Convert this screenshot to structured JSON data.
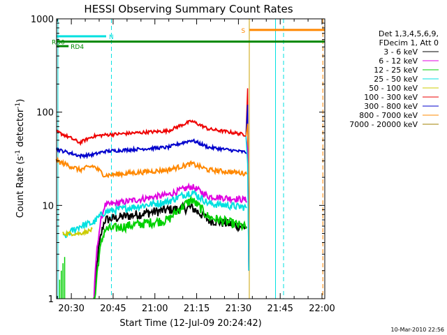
{
  "chart_data": {
    "type": "line",
    "title": "HESSI Observing Summary Count Rates",
    "xlabel": "Start Time (12-Jul-09 20:24:42)",
    "ylabel_main": "Count Rate (s",
    "ylabel_sup1": "-1",
    "ylabel_mid": " detector",
    "ylabel_sup2": "-1",
    "ylabel_end": ")",
    "y_scale": "log",
    "ylim": [
      1,
      1000
    ],
    "xlim": [
      "20:24:42",
      "22:01:00"
    ],
    "x_ticks": [
      "20:30",
      "20:45",
      "21:00",
      "21:15",
      "21:30",
      "21:45",
      "22:00"
    ],
    "y_ticks": [
      {
        "value": 1,
        "label": "1"
      },
      {
        "value": 10,
        "label": "10"
      },
      {
        "value": 100,
        "label": "100"
      },
      {
        "value": 1000,
        "label": "1000"
      }
    ],
    "legend_header": [
      "Det 1,3,4,5,6,9,",
      "FDecim 1, Att 0"
    ],
    "legend_position": "right",
    "series": [
      {
        "name": "3 - 6 keV",
        "color": "#000000",
        "key": [
          [
            20.55,
            0
          ],
          [
            20.63,
            0
          ],
          [
            20.7,
            7
          ],
          [
            21.08,
            9
          ],
          [
            21.22,
            9.5
          ],
          [
            21.32,
            7
          ],
          [
            21.55,
            5.8
          ]
        ],
        "edge": 1.0,
        "noise": 0.12
      },
      {
        "name": "6 - 12 keV",
        "color": "#e000e0",
        "key": [
          [
            20.55,
            0
          ],
          [
            20.63,
            0
          ],
          [
            20.7,
            10
          ],
          [
            21.08,
            13
          ],
          [
            21.22,
            16
          ],
          [
            21.32,
            12.5
          ],
          [
            21.55,
            11.5
          ]
        ],
        "edge": 1.0,
        "noise": 0.08
      },
      {
        "name": "12 - 25 keV",
        "color": "#00d000",
        "key": [
          [
            20.55,
            0
          ],
          [
            20.63,
            0
          ],
          [
            20.7,
            5.5
          ],
          [
            21.08,
            7
          ],
          [
            21.22,
            11.5
          ],
          [
            21.32,
            7.5
          ],
          [
            21.55,
            5.8
          ]
        ],
        "edge": 1.0,
        "noise": 0.12
      },
      {
        "name": "25 - 50 keV",
        "color": "#00e0e0",
        "key": [
          [
            20.45,
            4.5
          ],
          [
            20.55,
            6
          ],
          [
            20.63,
            6.5
          ],
          [
            20.7,
            8.5
          ],
          [
            21.08,
            11
          ],
          [
            21.22,
            14
          ],
          [
            21.32,
            10.5
          ],
          [
            21.55,
            9.5
          ]
        ],
        "edge": 1.0,
        "noise": 0.09
      },
      {
        "name": "50 - 100 keV",
        "color": "#cccc00",
        "key": [
          [
            20.45,
            5
          ],
          [
            20.55,
            5
          ],
          [
            20.63,
            5.5
          ]
        ],
        "edge": 0.0,
        "noise": 0.05
      },
      {
        "name": "100 - 300 keV",
        "color": "#ee0000",
        "key": [
          [
            20.41,
            62
          ],
          [
            20.55,
            47
          ],
          [
            20.63,
            55
          ],
          [
            20.7,
            57
          ],
          [
            21.08,
            63
          ],
          [
            21.22,
            80
          ],
          [
            21.32,
            66
          ],
          [
            21.55,
            57
          ]
        ],
        "edge": 1.0,
        "noise": 0.04
      },
      {
        "name": "300 - 800 keV",
        "color": "#0000cc",
        "key": [
          [
            20.41,
            40
          ],
          [
            20.55,
            34
          ],
          [
            20.63,
            35
          ],
          [
            20.7,
            38
          ],
          [
            21.08,
            42
          ],
          [
            21.22,
            50
          ],
          [
            21.32,
            42
          ],
          [
            21.55,
            37
          ]
        ],
        "edge": 1.0,
        "noise": 0.04
      },
      {
        "name": "800 - 7000 keV",
        "color": "#ff8800",
        "key": [
          [
            20.41,
            30
          ],
          [
            20.55,
            24
          ],
          [
            20.63,
            26.5
          ],
          [
            20.7,
            21
          ],
          [
            21.08,
            24
          ],
          [
            21.22,
            28
          ],
          [
            21.32,
            24
          ],
          [
            21.55,
            22
          ]
        ],
        "edge": 1.0,
        "noise": 0.06
      },
      {
        "name": "7000 - 20000 keV",
        "color": "#a08000",
        "key": [],
        "edge": 0.0,
        "noise": 0.0
      }
    ],
    "flags": [
      {
        "label": "N",
        "color": "#00e0e0",
        "y": 650,
        "start": "20:24:42",
        "end": "20:42:30"
      },
      {
        "label": "RD0",
        "color": "#008800",
        "y": 570,
        "start": "20:24:42",
        "end": "22:01:00"
      },
      {
        "label": "RD4",
        "color": "#008800",
        "y": 510,
        "start": "20:24:42",
        "end": "20:29:00"
      },
      {
        "label": "S",
        "color": "#ff8800",
        "y": 760,
        "start": "21:34:00",
        "end": "22:01:00"
      }
    ]
  },
  "timestamp": "10-Mar-2010 22:56"
}
